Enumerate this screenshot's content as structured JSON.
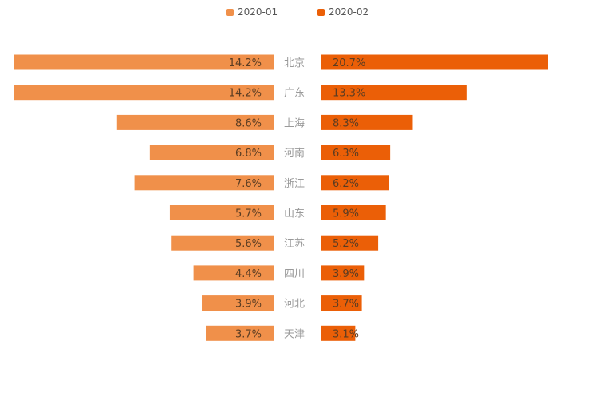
{
  "chart_data": {
    "type": "bar",
    "orientation": "horizontal-butterfly",
    "categories": [
      "北京",
      "广东",
      "上海",
      "河南",
      "浙江",
      "山东",
      "江苏",
      "四川",
      "河北",
      "天津"
    ],
    "series": [
      {
        "name": "2020-01",
        "color": "#F0904A",
        "values": [
          14.2,
          14.2,
          8.6,
          6.8,
          7.6,
          5.7,
          5.6,
          4.4,
          3.9,
          3.7
        ],
        "labels": [
          "14.2%",
          "14.2%",
          "8.6%",
          "6.8%",
          "7.6%",
          "5.7%",
          "5.6%",
          "4.4%",
          "3.9%",
          "3.7%"
        ]
      },
      {
        "name": "2020-02",
        "color": "#EB5F07",
        "values": [
          20.7,
          13.3,
          8.3,
          6.3,
          6.2,
          5.9,
          5.2,
          3.9,
          3.7,
          3.1
        ],
        "labels": [
          "20.7%",
          "13.3%",
          "8.3%",
          "6.3%",
          "6.2%",
          "5.9%",
          "5.2%",
          "3.9%",
          "3.7%",
          "3.1%"
        ]
      }
    ],
    "legend_position": "top-center",
    "grid": false
  }
}
